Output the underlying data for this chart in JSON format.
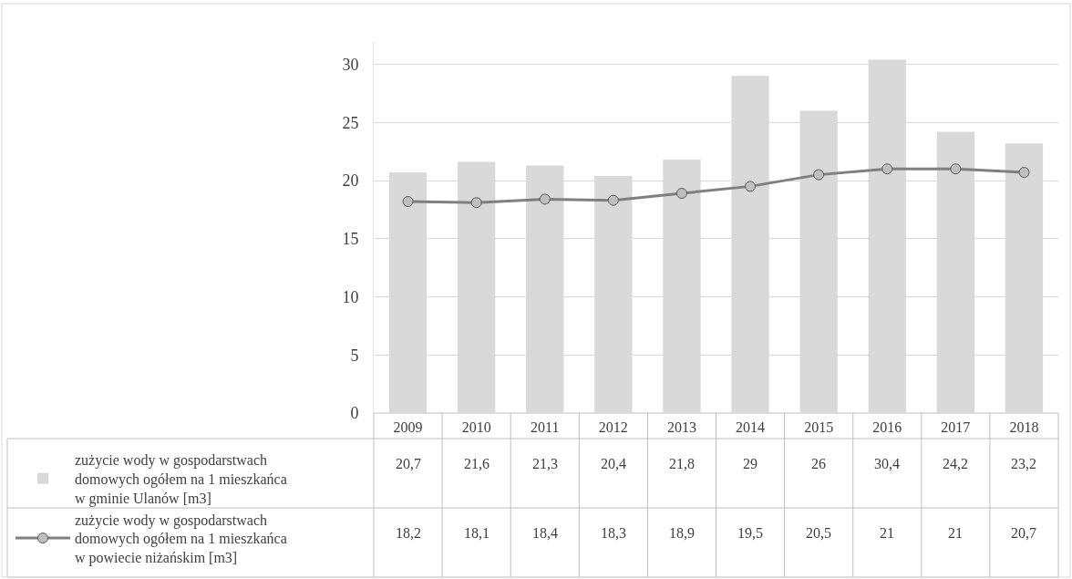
{
  "chart_data": {
    "type": "bar",
    "categories": [
      "2009",
      "2010",
      "2011",
      "2012",
      "2013",
      "2014",
      "2015",
      "2016",
      "2017",
      "2018"
    ],
    "series": [
      {
        "name": "zużycie wody w gospodarstwach domowych ogółem na 1 mieszkańca w gminie Ulanów [m3]",
        "color": "#d9d9d9",
        "values": [
          20.7,
          21.6,
          21.3,
          20.4,
          21.8,
          29,
          26,
          30.4,
          24.2,
          23.2
        ],
        "value_labels": [
          "20,7",
          "21,6",
          "21,3",
          "20,4",
          "21,8",
          "29",
          "26",
          "30,4",
          "24,2",
          "23,2"
        ]
      },
      {
        "name": "zużycie wody w gospodarstwach domowych ogółem na 1 mieszkańca w powiecie niżańskim [m3]",
        "type": "line",
        "color": "#7f7f7f",
        "marker": "circle",
        "values": [
          18.2,
          18.1,
          18.4,
          18.3,
          18.9,
          19.5,
          20.5,
          21,
          21,
          20.7
        ],
        "value_labels": [
          "18,2",
          "18,1",
          "18,4",
          "18,3",
          "18,9",
          "19,5",
          "20,5",
          "21",
          "21",
          "20,7"
        ]
      }
    ],
    "ylim": [
      0,
      32
    ],
    "yticks": [
      0,
      5,
      10,
      15,
      20,
      25,
      30
    ],
    "grid": "y",
    "legend": "bottom left"
  }
}
